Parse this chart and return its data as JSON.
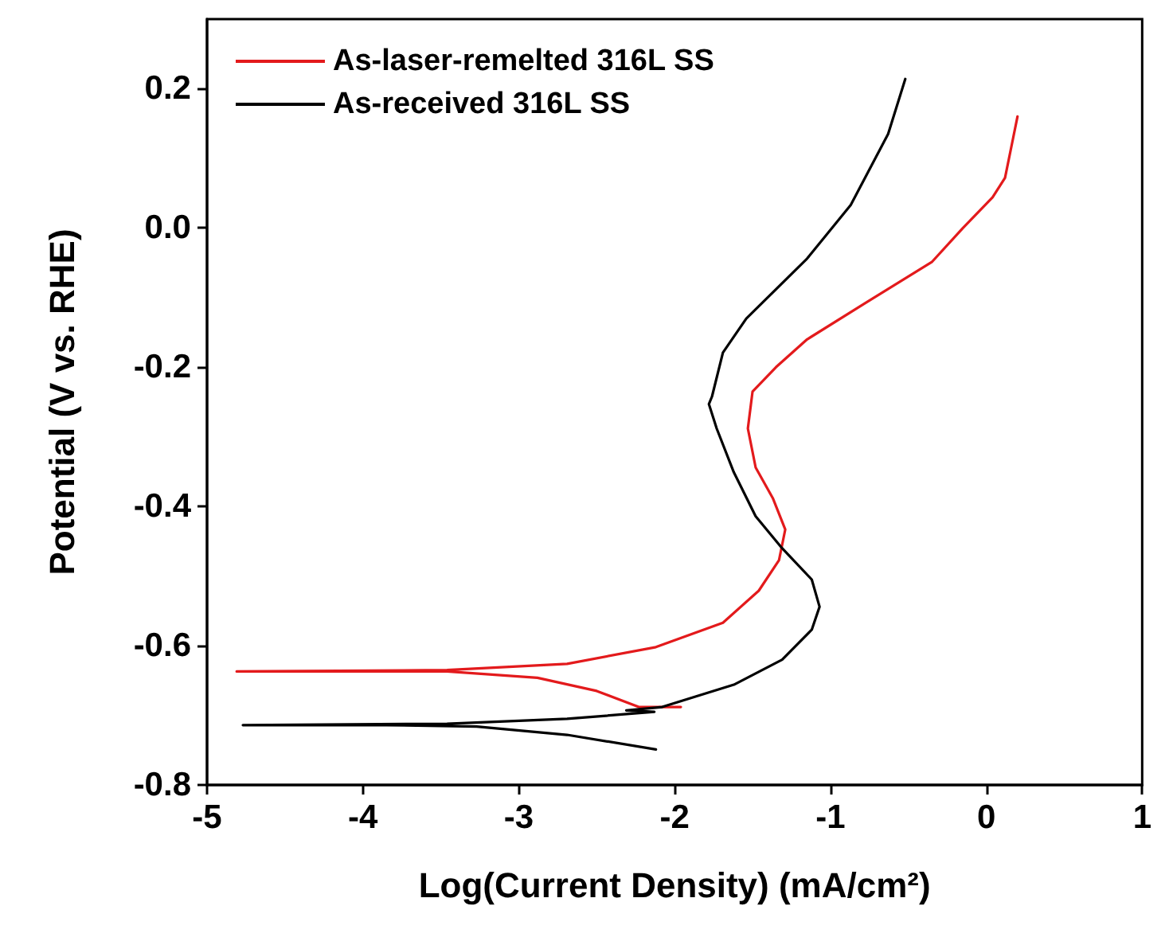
{
  "chart_data": {
    "type": "line",
    "xlabel": "Log(Current Density) (mA/cm²)",
    "ylabel": "Potential (V vs. RHE)",
    "xlim": [
      -5,
      1
    ],
    "xticks": [
      -5,
      -4,
      -3,
      -2,
      -1,
      0,
      1
    ],
    "ylim": [
      -0.8,
      0.3
    ],
    "yticks": [
      -0.8,
      -0.6,
      -0.4,
      -0.2,
      {
        "value": 0,
        "label": "0.0"
      },
      0.2
    ],
    "grid": false,
    "legend": "top left",
    "marker": "none",
    "line_style": "solid",
    "series": [
      {
        "name": "As-laser-remelted 316L SS",
        "color": "#e31a1c",
        "x": [
          0.2,
          0.12,
          0.04,
          -0.15,
          -0.35,
          -0.77,
          -1.15,
          -1.35,
          -1.5,
          -1.53,
          -1.48,
          -1.37,
          -1.29,
          -1.33,
          -1.46,
          -1.69,
          -2.12,
          -2.69,
          -3.46,
          -4.81,
          -3.46,
          -2.88,
          -2.5,
          -2.23,
          -1.96
        ],
        "values": [
          0.16,
          0.072,
          0.044,
          0.0,
          -0.049,
          -0.107,
          -0.16,
          -0.2,
          -0.235,
          -0.288,
          -0.344,
          -0.388,
          -0.433,
          -0.477,
          -0.521,
          -0.567,
          -0.602,
          -0.626,
          -0.635,
          -0.637,
          -0.637,
          -0.646,
          -0.665,
          -0.688,
          -0.688
        ]
      },
      {
        "name": "As-received 316L SS",
        "color": "#000000",
        "x": [
          -0.52,
          -0.63,
          -0.87,
          -1.15,
          -1.54,
          -1.69,
          -1.76,
          -1.78,
          -1.73,
          -1.62,
          -1.48,
          -1.31,
          -1.12,
          -1.07,
          -1.12,
          -1.31,
          -1.62,
          -2.08,
          -2.31,
          -2.13,
          -2.69,
          -3.46,
          -4.77,
          -3.85,
          -3.27,
          -2.69,
          -2.12
        ],
        "values": [
          0.214,
          0.135,
          0.033,
          -0.044,
          -0.13,
          -0.179,
          -0.242,
          -0.253,
          -0.288,
          -0.351,
          -0.414,
          -0.46,
          -0.505,
          -0.544,
          -0.577,
          -0.62,
          -0.656,
          -0.688,
          -0.693,
          -0.695,
          -0.705,
          -0.712,
          -0.714,
          -0.714,
          -0.716,
          -0.728,
          -0.749
        ]
      }
    ]
  }
}
